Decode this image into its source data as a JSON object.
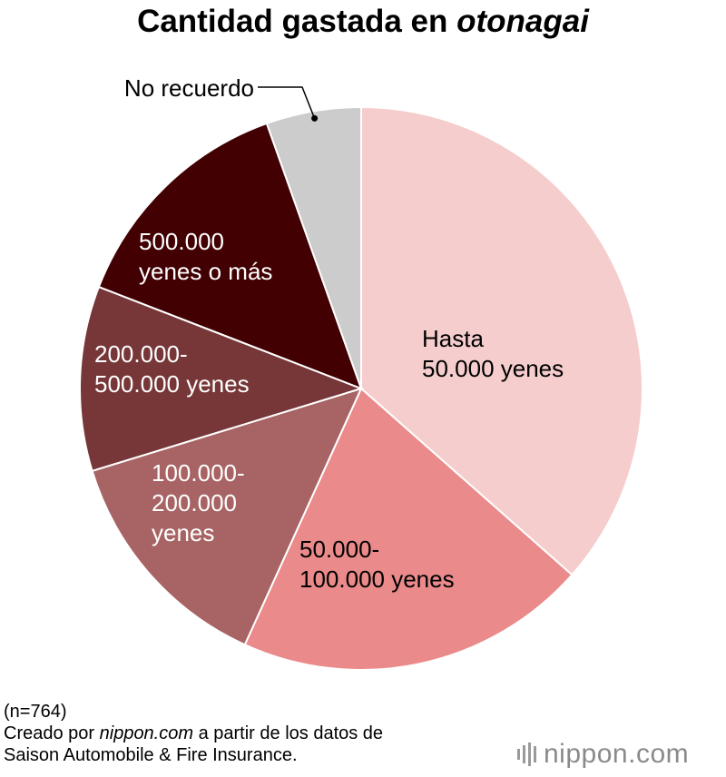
{
  "header": {
    "title_prefix": "Cantidad gastada en ",
    "title_emph": "otonagai"
  },
  "chart_data": {
    "type": "pie",
    "start": "12 o'clock, clockwise",
    "colors": {
      "divider": "#ffffff",
      "leader_line": "#000000"
    },
    "slices": [
      {
        "label_lines": [
          "Hasta",
          "50.000 yenes"
        ],
        "value": 38.2,
        "color": "#f5cdcd",
        "label_color": "#000000"
      },
      {
        "label_lines": [
          "50.000-",
          "100.000 yenes"
        ],
        "value": 21.2,
        "color": "#ea8a8a",
        "label_color": "#000000"
      },
      {
        "label_lines": [
          "100.000-",
          "200.000",
          "yenes"
        ],
        "value": 14.1,
        "color": "#a86464",
        "label_color": "#ffffff"
      },
      {
        "label_lines": [
          "200.000-",
          "500.000 yenes"
        ],
        "value": 11.1,
        "color": "#773738",
        "label_color": "#ffffff"
      },
      {
        "label_lines": [
          "500.000",
          "yenes o más"
        ],
        "value": 14.3,
        "color": "#420003",
        "label_color": "#ffffff"
      },
      {
        "label_lines": [
          "No recuerdo"
        ],
        "value": 5.7,
        "color": "#cccccc",
        "label_color": "#000000",
        "leader": true
      }
    ]
  },
  "footer": {
    "sample_size": "(n=764)",
    "credit_prefix": "Creado por ",
    "credit_site": "nippon.com",
    "credit_suffix": " a partir de los datos de",
    "source": "Saison Automobile & Fire Insurance."
  },
  "logo": {
    "name": "nippon",
    "dot": ".",
    "tld": "com",
    "icon": "sound-bars-icon"
  }
}
